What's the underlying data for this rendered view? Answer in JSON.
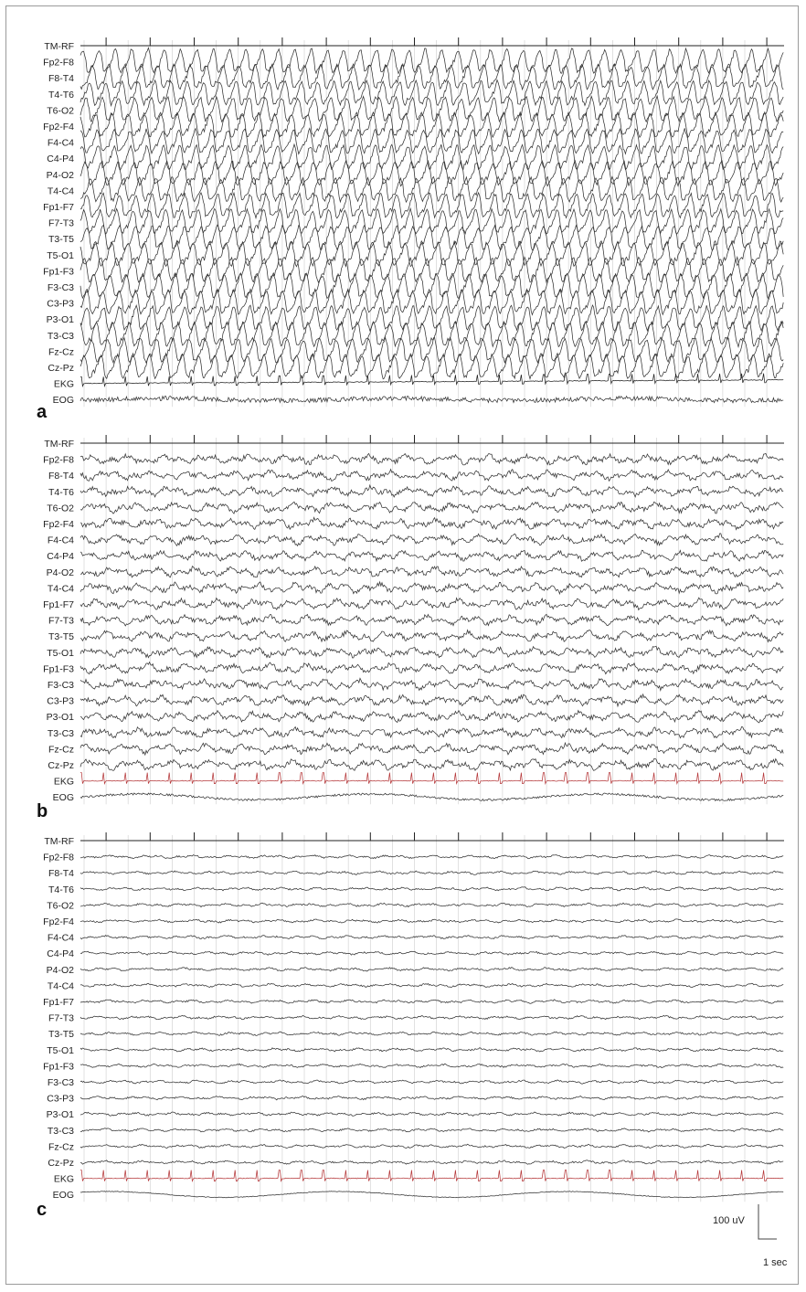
{
  "panels": [
    {
      "label": "a",
      "amplitude": 1.0,
      "ekg_color": "#222222"
    },
    {
      "label": "b",
      "amplitude": 0.45,
      "ekg_color": "#b5383a"
    },
    {
      "label": "c",
      "amplitude": 0.15,
      "ekg_color": "#b5383a"
    }
  ],
  "channels": [
    "TM-RF",
    "Fp2-F8",
    "F8-T4",
    "T4-T6",
    "T6-O2",
    "Fp2-F4",
    "F4-C4",
    "C4-P4",
    "P4-O2",
    "T4-C4",
    "Fp1-F7",
    "F7-T3",
    "T3-T5",
    "T5-O1",
    "Fp1-F3",
    "F3-C3",
    "C3-P3",
    "P3-O1",
    "T3-C3",
    "Fz-Cz",
    "Cz-Pz",
    "EKG",
    "EOG"
  ],
  "scale_bar": {
    "voltage": "100 uV",
    "time": "1 sec"
  },
  "colors": {
    "trace": "#333333",
    "grid": "#d4d4d4",
    "ekg_red": "#b5383a"
  }
}
